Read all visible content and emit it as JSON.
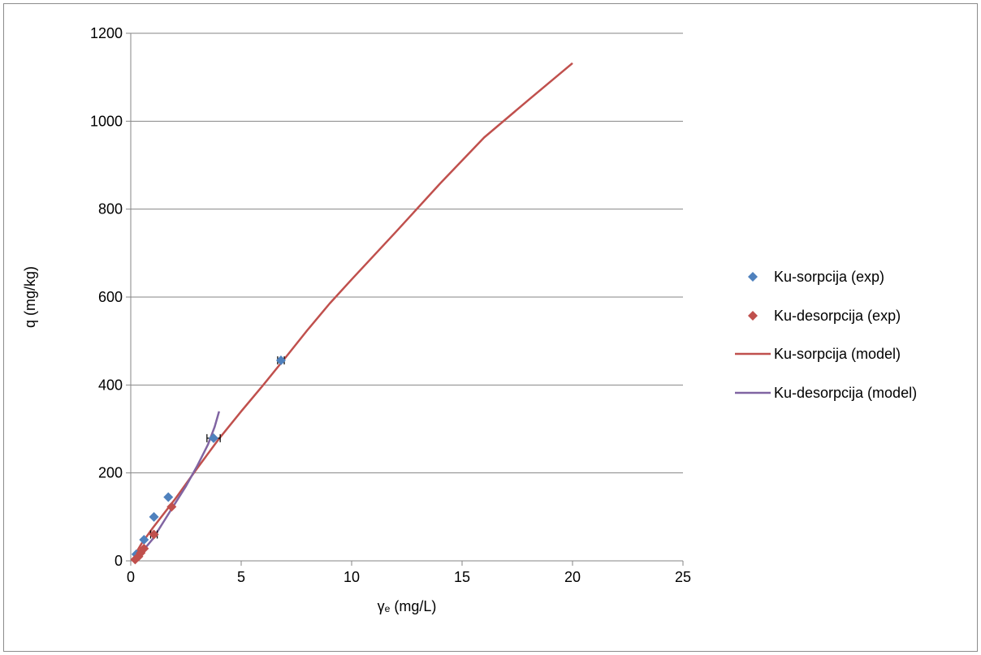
{
  "chart_data": {
    "type": "scatter",
    "title": "",
    "xlabel": "γₑ (mg/L)",
    "ylabel": "q (mg/kg)",
    "xlim": [
      0,
      25
    ],
    "ylim": [
      0,
      1200
    ],
    "x_ticks": [
      "0",
      "5",
      "10",
      "15",
      "20",
      "25"
    ],
    "y_ticks": [
      "0",
      "200",
      "400",
      "600",
      "800",
      "1000",
      "1200"
    ],
    "grid": "horizontal",
    "legend_position": "right",
    "series": [
      {
        "name": "Ku-sorpcija (exp)",
        "kind": "markers",
        "marker": "diamond",
        "color": "#4f81bd",
        "points": [
          [
            0.25,
            15
          ],
          [
            0.6,
            48
          ],
          [
            1.05,
            100
          ],
          [
            1.7,
            145
          ],
          [
            3.75,
            279
          ],
          [
            6.8,
            456
          ]
        ],
        "x_error": [
          0,
          0,
          0,
          0,
          0.3,
          0.15
        ]
      },
      {
        "name": "Ku-desorpcija (exp)",
        "kind": "markers",
        "marker": "diamond",
        "color": "#c0504d",
        "points": [
          [
            0.2,
            3
          ],
          [
            0.35,
            10
          ],
          [
            0.45,
            18
          ],
          [
            0.6,
            28
          ],
          [
            1.05,
            60
          ],
          [
            1.85,
            123
          ]
        ],
        "x_error": [
          0,
          0,
          0,
          0,
          0.15,
          0
        ]
      },
      {
        "name": "Ku-sorpcija (model)",
        "kind": "line",
        "color": "#c0504d",
        "points": [
          [
            0.2,
            15
          ],
          [
            0.5,
            40
          ],
          [
            1,
            75
          ],
          [
            2,
            140
          ],
          [
            3,
            210
          ],
          [
            4,
            278
          ],
          [
            5,
            340
          ],
          [
            6,
            400
          ],
          [
            7,
            462
          ],
          [
            8,
            525
          ],
          [
            9,
            585
          ],
          [
            10,
            640
          ],
          [
            12,
            748
          ],
          [
            14,
            858
          ],
          [
            16,
            963
          ],
          [
            18,
            1048
          ],
          [
            20,
            1132
          ]
        ]
      },
      {
        "name": "Ku-desorpcija (model)",
        "kind": "line",
        "color": "#8064a2",
        "points": [
          [
            0.2,
            2
          ],
          [
            0.5,
            20
          ],
          [
            1,
            50
          ],
          [
            1.5,
            90
          ],
          [
            2,
            130
          ],
          [
            2.5,
            170
          ],
          [
            3,
            215
          ],
          [
            3.5,
            265
          ],
          [
            3.8,
            305
          ],
          [
            4,
            340
          ]
        ]
      }
    ]
  }
}
